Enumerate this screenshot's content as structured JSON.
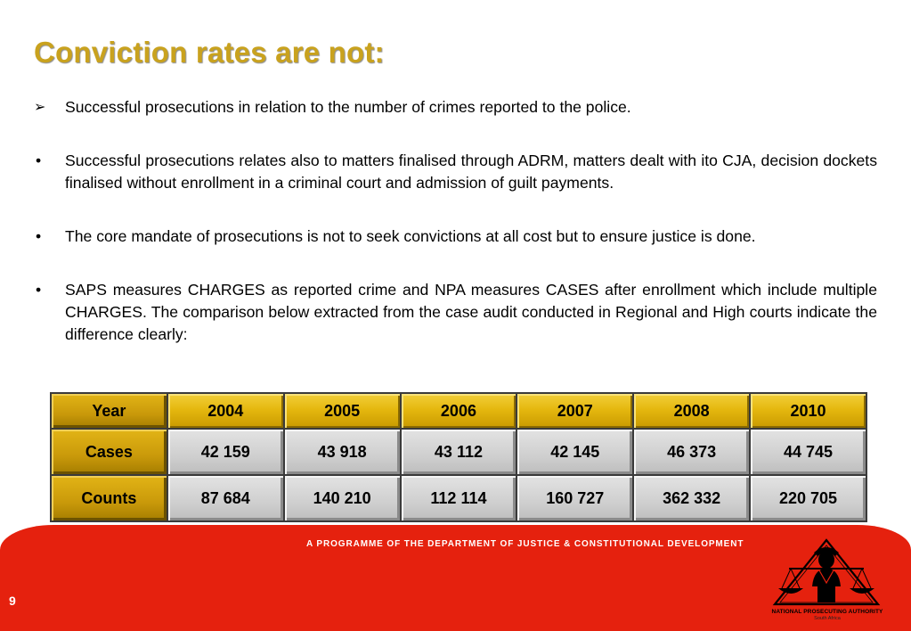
{
  "slide": {
    "title": "Conviction rates are not:",
    "page_number": "9",
    "colors": {
      "title": "#c9a21e",
      "footer": "#e5210e",
      "gold_cell": "#e5b80f",
      "grey_cell": "#cfcfcf"
    }
  },
  "bullets": [
    {
      "marker": "➢",
      "text": "Successful prosecutions in relation to the number of crimes reported to the police."
    },
    {
      "marker": "•",
      "text": "Successful prosecutions relates also to matters finalised through ADRM, matters dealt with ito CJA,  decision dockets finalised without enrollment in a criminal court and admission of guilt payments."
    },
    {
      "marker": "•",
      "text": "The core mandate of prosecutions is not to seek convictions at all cost but to ensure justice is done."
    },
    {
      "marker": "•",
      "text": "SAPS measures CHARGES as reported crime and NPA measures CASES after enrollment which include multiple CHARGES. The comparison below extracted from the case audit conducted in Regional and High courts indicate the difference clearly:"
    }
  ],
  "table": {
    "header": [
      "Year",
      "2004",
      "2005",
      "2006",
      "2007",
      "2008",
      "2010"
    ],
    "rows": [
      [
        "Cases",
        "42 159",
        "43 918",
        "43 112",
        "42 145",
        "46 373",
        "44 745"
      ],
      [
        "Counts",
        "87 684",
        "140 210",
        "112 114",
        "160 727",
        "362 332",
        "220 705"
      ]
    ]
  },
  "footer": {
    "programme_text": "A PROGRAMME OF THE DEPARTMENT OF JUSTICE & CONSTITUTIONAL DEVELOPMENT",
    "logo_icon": "scales-of-justice-icon",
    "logo_name": "NATIONAL PROSECUTING AUTHORITY",
    "logo_sub": "South Africa"
  }
}
